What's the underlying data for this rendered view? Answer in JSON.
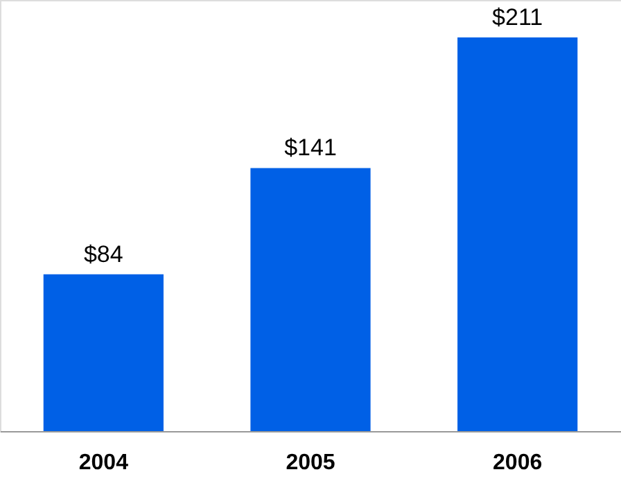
{
  "chart_data": {
    "type": "bar",
    "categories": [
      "2004",
      "2005",
      "2006"
    ],
    "values": [
      84,
      141,
      211
    ],
    "value_labels": [
      "$84",
      "$141",
      "$211"
    ],
    "color": "#0060e6",
    "grid": false
  }
}
